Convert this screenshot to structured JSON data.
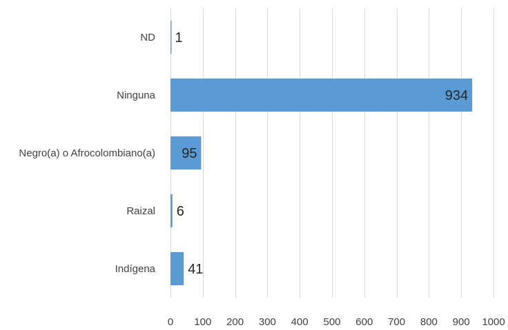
{
  "chart_data": {
    "type": "bar",
    "orientation": "horizontal",
    "title": "",
    "xlabel": "",
    "ylabel": "",
    "categories": [
      "ND",
      "Ninguna",
      "Negro(a) o Afrocolombiano(a)",
      "Raizal",
      "Indígena"
    ],
    "values": [
      1,
      934,
      95,
      6,
      41
    ],
    "data_labels": [
      "1",
      "934",
      "95",
      "6",
      "41"
    ],
    "xlim": [
      0,
      1000
    ],
    "xticks": [
      "0",
      "100",
      "200",
      "300",
      "400",
      "500",
      "600",
      "700",
      "800",
      "900",
      "1000"
    ],
    "grid": true,
    "legend": "none",
    "bar_color": "#5b9bd5",
    "grid_color": "#d9d9d9"
  }
}
